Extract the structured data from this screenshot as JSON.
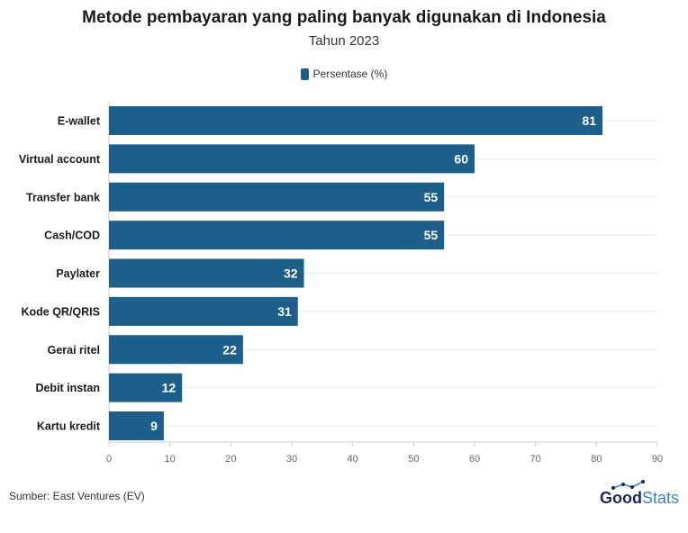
{
  "colors": {
    "bar": "#1d5f8b",
    "bar_label": "#ffffff",
    "grid": "#e9e9e9",
    "axis": "#cccccc",
    "logo_dark": "#1c2754",
    "logo_light": "#3a83c9"
  },
  "source": "Sumber: East Ventures (EV)",
  "logo": {
    "part1": "Good",
    "part2": "Stats"
  },
  "chart_data": {
    "type": "bar",
    "orientation": "horizontal",
    "title": "Metode pembayaran yang paling banyak digunakan di Indonesia",
    "subtitle": "Tahun 2023",
    "categories": [
      "E-wallet",
      "Virtual account",
      "Transfer bank",
      "Cash/COD",
      "Paylater",
      "Kode QR/QRIS",
      "Gerai ritel",
      "Debit instan",
      "Kartu kredit"
    ],
    "series": [
      {
        "name": "Persentase (%)",
        "values": [
          81,
          60,
          55,
          55,
          32,
          31,
          22,
          12,
          9
        ]
      }
    ],
    "xlim": [
      0,
      90
    ],
    "xticks": [
      0,
      10,
      20,
      30,
      40,
      50,
      60,
      70,
      80,
      90
    ],
    "grid": true,
    "legend": "top-center",
    "data_labels": true
  }
}
